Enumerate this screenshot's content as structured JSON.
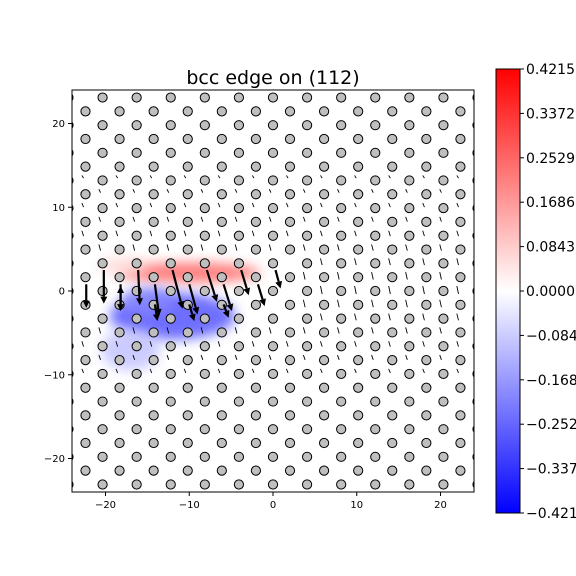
{
  "chart_data": {
    "type": "scatter",
    "title": "bcc edge on (112)",
    "xlabel": "",
    "ylabel": "",
    "xlim": [
      -24,
      24
    ],
    "ylim": [
      -24,
      24
    ],
    "x_ticks": [
      -20,
      -10,
      0,
      10,
      20
    ],
    "y_ticks": [
      -20,
      -10,
      0,
      10,
      20
    ],
    "x_tick_labels": [
      "−20",
      "−10",
      "0",
      "10",
      "20"
    ],
    "y_tick_labels": [
      "−20",
      "−10",
      "0",
      "10",
      "20"
    ],
    "grid": false,
    "lattice": {
      "origin": [
        0,
        0
      ],
      "row_spacing": 1.65,
      "x_spacing": 4.07,
      "row_offset": 2.03
    },
    "arrows": [
      {
        "x": -20.2,
        "y": 2.5,
        "dx": 0.0,
        "dy": -4.0
      },
      {
        "x": -18.2,
        "y": 0.8,
        "dx": 0.0,
        "dy": -3.2
      },
      {
        "x": -16.1,
        "y": 2.5,
        "dx": 0.2,
        "dy": -4.2
      },
      {
        "x": -14.1,
        "y": 0.8,
        "dx": 0.5,
        "dy": -3.8
      },
      {
        "x": -12.0,
        "y": 2.5,
        "dx": 1.2,
        "dy": -4.6
      },
      {
        "x": -10.0,
        "y": 0.8,
        "dx": 1.0,
        "dy": -3.6
      },
      {
        "x": -7.9,
        "y": 2.5,
        "dx": 1.2,
        "dy": -3.8
      },
      {
        "x": -5.9,
        "y": 0.8,
        "dx": 1.0,
        "dy": -3.2
      },
      {
        "x": -3.8,
        "y": 2.5,
        "dx": 0.9,
        "dy": -3.0
      },
      {
        "x": -1.8,
        "y": 0.8,
        "dx": 0.8,
        "dy": -2.6
      },
      {
        "x": 0.3,
        "y": 2.5,
        "dx": 0.6,
        "dy": -2.2
      },
      {
        "x": -22.3,
        "y": 0.8,
        "dx": 0.0,
        "dy": -2.8
      },
      {
        "x": -18.2,
        "y": -1.6,
        "dx": 0.0,
        "dy": 2.2
      },
      {
        "x": -14.1,
        "y": -1.6,
        "dx": 0.3,
        "dy": -2.0
      },
      {
        "x": -10.0,
        "y": -1.6,
        "dx": 0.6,
        "dy": -2.0
      },
      {
        "x": -5.9,
        "y": -1.6,
        "dx": 0.6,
        "dy": -1.6
      }
    ],
    "colorbar": {
      "colormap": "bwr",
      "min": -0.4215,
      "max": 0.4215,
      "ticks": [
        0.4215,
        0.3372,
        0.2529,
        0.1686,
        0.0843,
        0.0,
        -0.0843,
        -0.1686,
        -0.2529,
        -0.3372,
        -0.4215
      ],
      "tick_labels": [
        "0.4215",
        "0.3372",
        "0.2529",
        "0.1686",
        "0.0843",
        "0.0000",
        "−0.0843",
        "−0.1686",
        "−0.2529",
        "−0.3372",
        "−0.4215"
      ]
    },
    "field_blobs": [
      {
        "x": -10.0,
        "y": 2.2,
        "sx": 8.5,
        "sy": 1.2,
        "value": 0.25
      },
      {
        "x": -18.0,
        "y": 3.0,
        "sx": 3.0,
        "sy": 1.0,
        "value": 0.06
      },
      {
        "x": -12.0,
        "y": -3.0,
        "sx": 7.5,
        "sy": 2.8,
        "value": -0.28
      },
      {
        "x": -15.0,
        "y": -1.2,
        "sx": 3.0,
        "sy": 1.6,
        "value": -0.2
      },
      {
        "x": -17.0,
        "y": -7.0,
        "sx": 3.5,
        "sy": 2.5,
        "value": -0.1
      }
    ],
    "colors": {
      "positive": "#ff0000",
      "negative": "#0000ff",
      "neutral": "#ffffff",
      "atom_fill": "#bfbfbf",
      "atom_edge": "#000000"
    }
  }
}
